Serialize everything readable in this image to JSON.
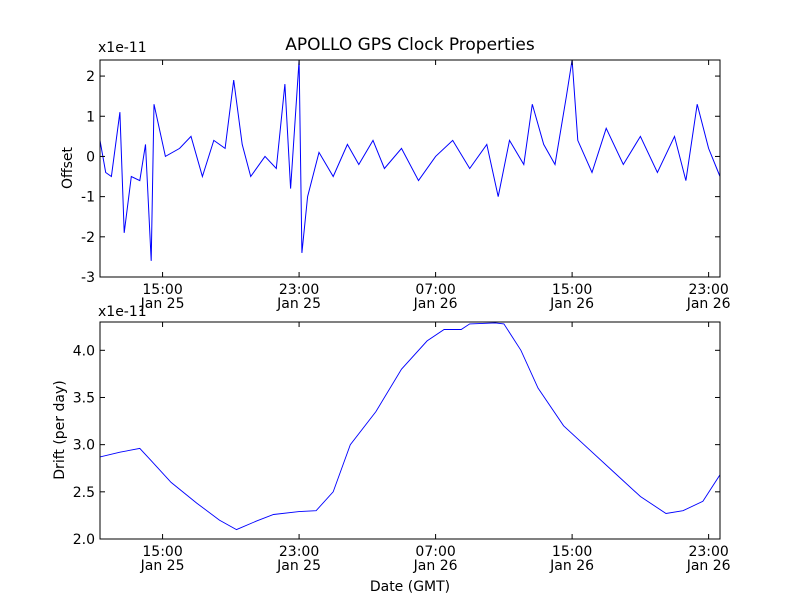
{
  "figure": {
    "title": "APOLLO GPS Clock Properties",
    "xlabel": "Date (GMT)"
  },
  "x_ticks": [
    {
      "time": "15:00",
      "date": "Jan 25"
    },
    {
      "time": "23:00",
      "date": "Jan 25"
    },
    {
      "time": "07:00",
      "date": "Jan 26"
    },
    {
      "time": "15:00",
      "date": "Jan 26"
    },
    {
      "time": "23:00",
      "date": "Jan 26"
    }
  ],
  "chart_data": [
    {
      "type": "line",
      "name": "offset",
      "ylabel": "Offset",
      "scale_label": "x1e-11",
      "xlim": [
        "Jan 25 11:20",
        "Jan 26 23:40"
      ],
      "ylim": [
        -3,
        2.4
      ],
      "yticks": [
        -3,
        -2,
        -1,
        0,
        1,
        2
      ],
      "ytick_labels": [
        "-3",
        "-2",
        "-1",
        "0",
        "1",
        "2"
      ],
      "color": "#0000ff",
      "points": [
        [
          "Jan 25 11:20",
          0.4
        ],
        [
          "Jan 25 11:40",
          -0.4
        ],
        [
          "Jan 25 12:00",
          -0.5
        ],
        [
          "Jan 25 12:30",
          1.1
        ],
        [
          "Jan 25 12:45",
          -1.9
        ],
        [
          "Jan 25 13:10",
          -0.5
        ],
        [
          "Jan 25 13:40",
          -0.6
        ],
        [
          "Jan 25 14:00",
          0.3
        ],
        [
          "Jan 25 14:20",
          -2.6
        ],
        [
          "Jan 25 14:30",
          1.3
        ],
        [
          "Jan 25 15:10",
          0.0
        ],
        [
          "Jan 25 16:00",
          0.2
        ],
        [
          "Jan 25 16:40",
          0.5
        ],
        [
          "Jan 25 17:20",
          -0.5
        ],
        [
          "Jan 25 18:00",
          0.4
        ],
        [
          "Jan 25 18:40",
          0.2
        ],
        [
          "Jan 25 19:10",
          1.9
        ],
        [
          "Jan 25 19:40",
          0.3
        ],
        [
          "Jan 25 20:10",
          -0.5
        ],
        [
          "Jan 25 21:00",
          0.0
        ],
        [
          "Jan 25 21:40",
          -0.3
        ],
        [
          "Jan 25 22:10",
          1.8
        ],
        [
          "Jan 25 22:30",
          -0.8
        ],
        [
          "Jan 25 23:00",
          2.4
        ],
        [
          "Jan 25 23:10",
          -2.4
        ],
        [
          "Jan 25 23:30",
          -1.0
        ],
        [
          "Jan 26 00:10",
          0.1
        ],
        [
          "Jan 26 01:00",
          -0.5
        ],
        [
          "Jan 26 01:50",
          0.3
        ],
        [
          "Jan 26 02:30",
          -0.2
        ],
        [
          "Jan 26 03:20",
          0.4
        ],
        [
          "Jan 26 04:00",
          -0.3
        ],
        [
          "Jan 26 05:00",
          0.2
        ],
        [
          "Jan 26 06:00",
          -0.6
        ],
        [
          "Jan 26 07:00",
          0.0
        ],
        [
          "Jan 26 08:00",
          0.4
        ],
        [
          "Jan 26 09:00",
          -0.3
        ],
        [
          "Jan 26 10:00",
          0.3
        ],
        [
          "Jan 26 10:40",
          -1.0
        ],
        [
          "Jan 26 11:20",
          0.4
        ],
        [
          "Jan 26 12:10",
          -0.2
        ],
        [
          "Jan 26 12:40",
          1.3
        ],
        [
          "Jan 26 13:20",
          0.3
        ],
        [
          "Jan 26 14:00",
          -0.2
        ],
        [
          "Jan 26 14:40",
          1.5
        ],
        [
          "Jan 26 15:00",
          2.4
        ],
        [
          "Jan 26 15:20",
          0.4
        ],
        [
          "Jan 26 16:10",
          -0.4
        ],
        [
          "Jan 26 17:00",
          0.7
        ],
        [
          "Jan 26 18:00",
          -0.2
        ],
        [
          "Jan 26 19:00",
          0.5
        ],
        [
          "Jan 26 20:00",
          -0.4
        ],
        [
          "Jan 26 21:00",
          0.5
        ],
        [
          "Jan 26 21:40",
          -0.6
        ],
        [
          "Jan 26 22:20",
          1.3
        ],
        [
          "Jan 26 23:00",
          0.2
        ],
        [
          "Jan 26 23:40",
          -0.5
        ]
      ]
    },
    {
      "type": "line",
      "name": "drift",
      "ylabel": "Drift (per day)",
      "scale_label": "x1e-11",
      "xlim": [
        "Jan 25 11:20",
        "Jan 26 23:40"
      ],
      "ylim": [
        2.0,
        4.3
      ],
      "yticks": [
        2.0,
        2.5,
        3.0,
        3.5,
        4.0
      ],
      "ytick_labels": [
        "2.0",
        "2.5",
        "3.0",
        "3.5",
        "4.0"
      ],
      "color": "#0000ff",
      "points": [
        [
          "Jan 25 11:20",
          2.87
        ],
        [
          "Jan 25 12:30",
          2.92
        ],
        [
          "Jan 25 13:40",
          2.96
        ],
        [
          "Jan 25 14:20",
          2.83
        ],
        [
          "Jan 25 15:30",
          2.6
        ],
        [
          "Jan 25 17:00",
          2.38
        ],
        [
          "Jan 25 18:20",
          2.2
        ],
        [
          "Jan 25 19:20",
          2.1
        ],
        [
          "Jan 25 20:30",
          2.19
        ],
        [
          "Jan 25 21:30",
          2.26
        ],
        [
          "Jan 25 23:00",
          2.29
        ],
        [
          "Jan 26 00:00",
          2.3
        ],
        [
          "Jan 26 01:00",
          2.5
        ],
        [
          "Jan 26 02:00",
          3.0
        ],
        [
          "Jan 26 03:30",
          3.35
        ],
        [
          "Jan 26 05:00",
          3.8
        ],
        [
          "Jan 26 06:30",
          4.1
        ],
        [
          "Jan 26 07:30",
          4.22
        ],
        [
          "Jan 26 08:30",
          4.22
        ],
        [
          "Jan 26 09:00",
          4.28
        ],
        [
          "Jan 26 10:30",
          4.29
        ],
        [
          "Jan 26 11:00",
          4.28
        ],
        [
          "Jan 26 12:00",
          4.0
        ],
        [
          "Jan 26 13:00",
          3.6
        ],
        [
          "Jan 26 14:30",
          3.2
        ],
        [
          "Jan 26 16:00",
          2.95
        ],
        [
          "Jan 26 17:30",
          2.7
        ],
        [
          "Jan 26 19:00",
          2.45
        ],
        [
          "Jan 26 20:30",
          2.27
        ],
        [
          "Jan 26 21:30",
          2.3
        ],
        [
          "Jan 26 22:40",
          2.4
        ],
        [
          "Jan 26 23:40",
          2.68
        ]
      ]
    }
  ]
}
